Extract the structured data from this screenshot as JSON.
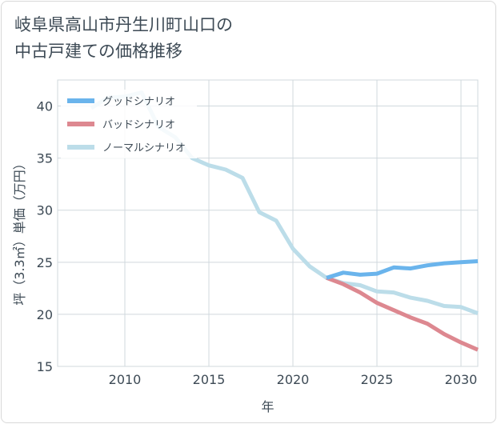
{
  "title": {
    "line1": "岐阜県高山市丹生川町山口の",
    "line2": "中古戸建ての価格推移"
  },
  "chart_data": {
    "type": "line",
    "xlabel": "年",
    "ylabel": "坪（3.3㎡）単価（万円）",
    "xlim": [
      2006,
      2031
    ],
    "ylim": [
      15,
      42.5
    ],
    "xticks": [
      2010,
      2015,
      2020,
      2025,
      2030
    ],
    "yticks": [
      15,
      20,
      25,
      30,
      35,
      40
    ],
    "grid": true,
    "legend_position": "top-left",
    "series": [
      {
        "name": "グッドシナリオ",
        "color": "#6ab4ec",
        "x": [
          2022,
          2023,
          2024,
          2025,
          2026,
          2027,
          2028,
          2029,
          2030,
          2031
        ],
        "y": [
          23.5,
          24.0,
          23.8,
          23.9,
          24.5,
          24.4,
          24.7,
          24.9,
          25.0,
          25.1
        ]
      },
      {
        "name": "バッドシナリオ",
        "color": "#dd8890",
        "x": [
          2022,
          2023,
          2024,
          2025,
          2026,
          2027,
          2028,
          2029,
          2030,
          2031
        ],
        "y": [
          23.5,
          22.9,
          22.1,
          21.1,
          20.4,
          19.7,
          19.1,
          18.1,
          17.3,
          16.6
        ]
      },
      {
        "name": "ノーマルシナリオ",
        "color": "#bcdde9",
        "x": [
          2008,
          2009,
          2010,
          2011,
          2012,
          2013,
          2014,
          2015,
          2016,
          2017,
          2018,
          2019,
          2020,
          2021,
          2022,
          2023,
          2024,
          2025,
          2026,
          2027,
          2028,
          2029,
          2030,
          2031
        ],
        "y": [
          39.8,
          40.8,
          40.9,
          41.3,
          38.0,
          37.0,
          35.0,
          34.3,
          33.9,
          33.1,
          29.8,
          29.0,
          26.3,
          24.6,
          23.5,
          23.0,
          22.8,
          22.2,
          22.1,
          21.6,
          21.3,
          20.8,
          20.7,
          20.1
        ]
      }
    ]
  }
}
